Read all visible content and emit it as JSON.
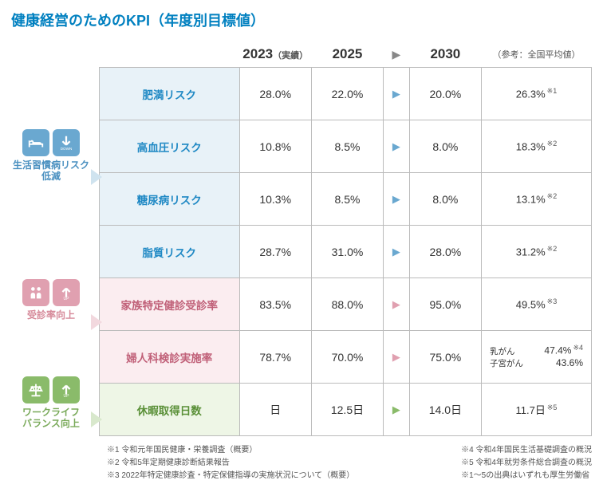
{
  "title": "健康経営のためのKPI（年度別目標値）",
  "colors": {
    "title": "#0080c0",
    "blue_bg": "#e8f2f8",
    "blue_lbl": "#1e88c4",
    "blue_ico": "#6aa8d0",
    "pink_bg": "#fbedf0",
    "pink_lbl": "#c06078",
    "pink_ico": "#e0a0b0",
    "green_bg": "#eef6e6",
    "green_lbl": "#5a9038",
    "green_ico": "#8abb6a",
    "border": "#bbbbbb"
  },
  "header": {
    "y2023": "2023",
    "y2023_sub": "（実績）",
    "y2025": "2025",
    "y2030": "2030",
    "arrow": "▶",
    "ref": "（参考：全国平均値）"
  },
  "callouts": {
    "blue": {
      "label1": "生活習慣病リスク",
      "label2": "低減",
      "badge": "DOWN"
    },
    "pink": {
      "label1": "受診率向上",
      "badge": "UP"
    },
    "green": {
      "label1": "ワークライフ",
      "label2": "バランス向上",
      "badge": "UP"
    }
  },
  "rows": [
    {
      "group": "blue",
      "label": "肥満リスク",
      "v2023": "28.0%",
      "v2025": "22.0%",
      "v2030": "20.0%",
      "ref": "26.3%",
      "note": "※1"
    },
    {
      "group": "blue",
      "label": "高血圧リスク",
      "v2023": "10.8%",
      "v2025": "8.5%",
      "v2030": "8.0%",
      "ref": "18.3%",
      "note": "※2"
    },
    {
      "group": "blue",
      "label": "糖尿病リスク",
      "v2023": "10.3%",
      "v2025": "8.5%",
      "v2030": "8.0%",
      "ref": "13.1%",
      "note": "※2"
    },
    {
      "group": "blue",
      "label": "脂質リスク",
      "v2023": "28.7%",
      "v2025": "31.0%",
      "v2030": "28.0%",
      "ref": "31.2%",
      "note": "※2"
    },
    {
      "group": "pink",
      "label": "家族特定健診受診率",
      "v2023": "83.5%",
      "v2025": "88.0%",
      "v2030": "95.0%",
      "ref": "49.5%",
      "note": "※3"
    },
    {
      "group": "pink",
      "label": "婦人科検診実施率",
      "v2023": "78.7%",
      "v2025": "70.0%",
      "v2030": "75.0%",
      "ref_multi": [
        {
          "k": "乳がん",
          "v": "47.4%",
          "n": "※4"
        },
        {
          "k": "子宮がん",
          "v": "43.6%"
        }
      ]
    },
    {
      "group": "green",
      "label": "休暇取得日数",
      "v2023": "日",
      "v2025": "12.5日",
      "v2030": "14.0日",
      "ref": "11.7日",
      "note": "※5"
    }
  ],
  "footnotes": {
    "left": [
      "※1 令和元年国民健康・栄養調査（概要）",
      "※2 令和5年定期健康診断結果報告",
      "※3 2022年特定健康診査・特定保健指導の実施状況について（概要）"
    ],
    "right": [
      "※4 令和4年国民生活基礎調査の概況",
      "※5 令和4年就労条件総合調査の概況",
      "※1〜5の出典はいずれも厚生労働省"
    ]
  }
}
